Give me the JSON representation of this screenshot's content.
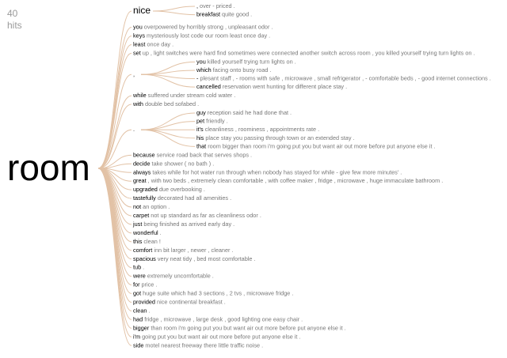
{
  "hits": {
    "count": "40",
    "label": "hits"
  },
  "root": "room",
  "colors": {
    "branch": "#e2c2a6",
    "keyword": "#000000",
    "context": "#777777",
    "hits": "#9a9a9a"
  },
  "branches": [
    {
      "word": "nice",
      "big": true,
      "children": [
        {
          "word": ",",
          "rest": "over - priced ."
        },
        {
          "word": "breakfast",
          "rest": "quite good ."
        }
      ]
    },
    {
      "word": "you",
      "rest": "overpowered by horribly strong , unpleasant odor ."
    },
    {
      "word": "keys",
      "rest": "mysteriously lost code our room least once day ."
    },
    {
      "word": "least",
      "rest": "once day ."
    },
    {
      "word": "set",
      "rest": "up , light switches were hard find sometimes were connected another switch across room , you killed yourself trying turn lights on ."
    },
    {
      "word": ",",
      "children": [
        {
          "word": "you",
          "rest": "killed yourself trying turn lights on ."
        },
        {
          "word": "which",
          "rest": "facing onto busy road ."
        },
        {
          "word": "-",
          "rest": "plesant staff , - rooms with safe , microwave , small refrigerator , - comfortable beds , - good internet connections ."
        },
        {
          "word": "cancelled",
          "rest": "reservation went hunting for different place stay ."
        }
      ]
    },
    {
      "word": "while",
      "rest": "suffered under stream cold water ."
    },
    {
      "word": "with",
      "rest": "double bed sofabed ."
    },
    {
      "word": ".",
      "children": [
        {
          "word": "guy",
          "rest": "reception said he had done that ."
        },
        {
          "word": "pet",
          "rest": "friendly ."
        },
        {
          "word": "it's",
          "rest": "cleanliness , roominess , appointments rate ."
        },
        {
          "word": "his",
          "rest": "place stay you passing through town or an extended stay ."
        },
        {
          "word": "that",
          "rest": "room bigger than room i'm going put you but want air out more before put anyone else it ."
        }
      ]
    },
    {
      "word": "because",
      "rest": "service road back that serves shops ."
    },
    {
      "word": "decide",
      "rest": "take shower ( no bath ) ."
    },
    {
      "word": "always",
      "rest": "takes while for hot water run through when nobody has stayed for while - give few more minutes' ."
    },
    {
      "word": "great",
      "rest": ", with two beds , extremely clean comfortable , with coffee maker , fridge , microwave , huge immaculate bathroom ."
    },
    {
      "word": "upgraded",
      "rest": "due overbooking ."
    },
    {
      "word": "tastefully",
      "rest": "decorated had all amenities ."
    },
    {
      "word": "not",
      "rest": "an option ."
    },
    {
      "word": "carpet",
      "rest": "not up standard as far as cleanliness odor ."
    },
    {
      "word": "just",
      "rest": "being finished as arrived early day ."
    },
    {
      "word": "wonderful",
      "rest": "."
    },
    {
      "word": "this",
      "rest": "clean !"
    },
    {
      "word": "comfort",
      "rest": "inn bit larger , newer , cleaner ."
    },
    {
      "word": "spacious",
      "rest": "very neat tidy , bed most comfortable ."
    },
    {
      "word": "tub",
      "rest": "."
    },
    {
      "word": "were",
      "rest": "extremely uncomfortable ."
    },
    {
      "word": "for",
      "rest": "price ."
    },
    {
      "word": "got",
      "rest": "huge suite which had 3 sections , 2 tvs , microwave fridge ."
    },
    {
      "word": "provided",
      "rest": "nice continental breakfast ."
    },
    {
      "word": "clean",
      "rest": "."
    },
    {
      "word": "had",
      "rest": "fridge , microwave , large desk , good lighting one easy chair ."
    },
    {
      "word": "bigger",
      "rest": "than room i'm going put you but want air out more before put anyone else it ."
    },
    {
      "word": "i'm",
      "rest": "going put you but want air out more before put anyone else it ."
    },
    {
      "word": "side",
      "rest": "motel nearest freeway there little traffic noise ."
    }
  ]
}
